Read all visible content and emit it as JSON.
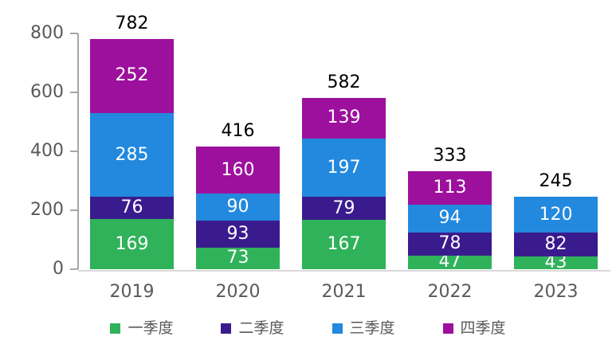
{
  "chart_data": {
    "type": "bar",
    "stacked": true,
    "title": "",
    "xlabel": "",
    "ylabel": "",
    "categories": [
      "2019",
      "2020",
      "2021",
      "2022",
      "2023"
    ],
    "series": [
      {
        "name": "一季度",
        "color": "#2FB259",
        "values": [
          169,
          73,
          167,
          47,
          43
        ]
      },
      {
        "name": "二季度",
        "color": "#3A1B8E",
        "values": [
          76,
          93,
          79,
          78,
          82
        ]
      },
      {
        "name": "三季度",
        "color": "#2289DE",
        "values": [
          285,
          90,
          197,
          94,
          120
        ]
      },
      {
        "name": "四季度",
        "color": "#9D109D",
        "values": [
          252,
          160,
          139,
          113,
          0
        ]
      }
    ],
    "totals": [
      782,
      416,
      582,
      333,
      245
    ],
    "yticks": [
      0,
      200,
      400,
      600,
      800
    ],
    "ylim": [
      0,
      800
    ],
    "grid": false,
    "legend_position": "bottom",
    "colors": {
      "axis_line": "#A6A6A6",
      "baseline": "#D9D9D9",
      "tick_label": "#595959",
      "category_label": "#595959",
      "legend_label": "#595959",
      "total_label": "#000000",
      "value_label": "#FFFFFF"
    }
  }
}
